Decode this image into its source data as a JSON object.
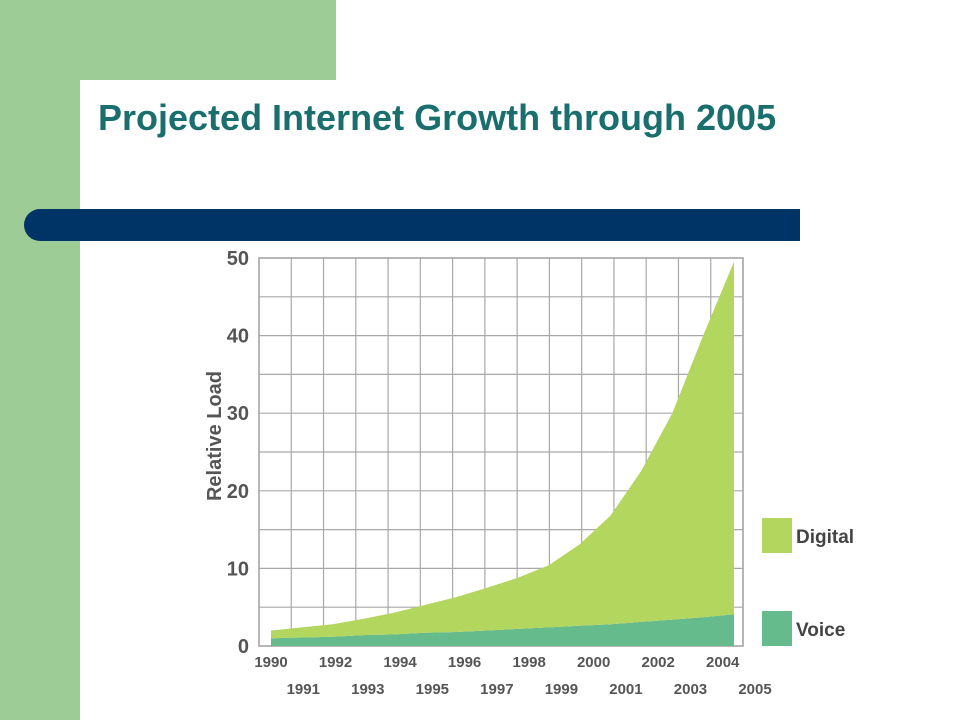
{
  "slide": {
    "title": "Projected Internet Growth through 2005"
  },
  "theme": {
    "accent_green": "#9dcc96",
    "title_color": "#1a6e6e",
    "bar_color": "#003366"
  },
  "chart_data": {
    "type": "area",
    "stacked": true,
    "title": "",
    "xlabel": "",
    "ylabel": "Relative Load",
    "x": [
      1990,
      1991,
      1992,
      1993,
      1994,
      1995,
      1996,
      1997,
      1998,
      1999,
      2000,
      2001,
      2002,
      2003,
      2004,
      2005
    ],
    "xlim": [
      1990,
      2005
    ],
    "ylim": [
      0,
      50
    ],
    "yticks": [
      0,
      10,
      20,
      30,
      40,
      50
    ],
    "xticks_top": [
      "1990",
      "1992",
      "1994",
      "1996",
      "1998",
      "2000",
      "2002",
      "2004"
    ],
    "xticks_bottom": [
      "1991",
      "1993",
      "1995",
      "1997",
      "1999",
      "2001",
      "2003",
      "2005"
    ],
    "grid": true,
    "legend_position": "right",
    "series": [
      {
        "name": "Voice",
        "color": "#66bb8c",
        "values": [
          1.0,
          1.1,
          1.2,
          1.4,
          1.5,
          1.7,
          1.8,
          2.0,
          2.2,
          2.4,
          2.6,
          2.8,
          3.1,
          3.4,
          3.7,
          4.1
        ]
      },
      {
        "name": "Digital",
        "color": "#b2d65e",
        "values": [
          1.0,
          1.3,
          1.6,
          2.1,
          2.8,
          3.6,
          4.5,
          5.5,
          6.6,
          8.0,
          10.5,
          14.0,
          19.5,
          26.6,
          36.3,
          45.4
        ]
      }
    ]
  }
}
